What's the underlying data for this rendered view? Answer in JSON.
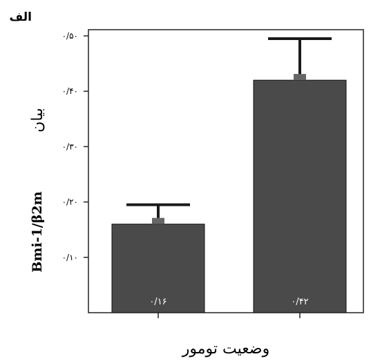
{
  "panel_label": "الف",
  "chart_data": {
    "type": "bar",
    "categories": [
      "",
      ""
    ],
    "values": [
      0.16,
      0.42
    ],
    "value_labels": [
      "۰/۱۶",
      "۰/۴۲"
    ],
    "error_upper": [
      0.195,
      0.495
    ],
    "ylim": [
      0.0,
      0.52
    ],
    "yticks": [
      0.1,
      0.2,
      0.3,
      0.4,
      0.5
    ],
    "ytick_labels": [
      "۰/۱۰",
      "۰/۲۰",
      "۰/۳۰",
      "۰/۴۰",
      "۰/۵۰"
    ],
    "xlabel": "وضعیت تومور",
    "ylabel_main": "Bmi-1/β2m",
    "ylabel_sub": "بیان",
    "grid": false,
    "bar_color": "#4a4a4a",
    "errorbar_color": "#1a1a1a"
  }
}
